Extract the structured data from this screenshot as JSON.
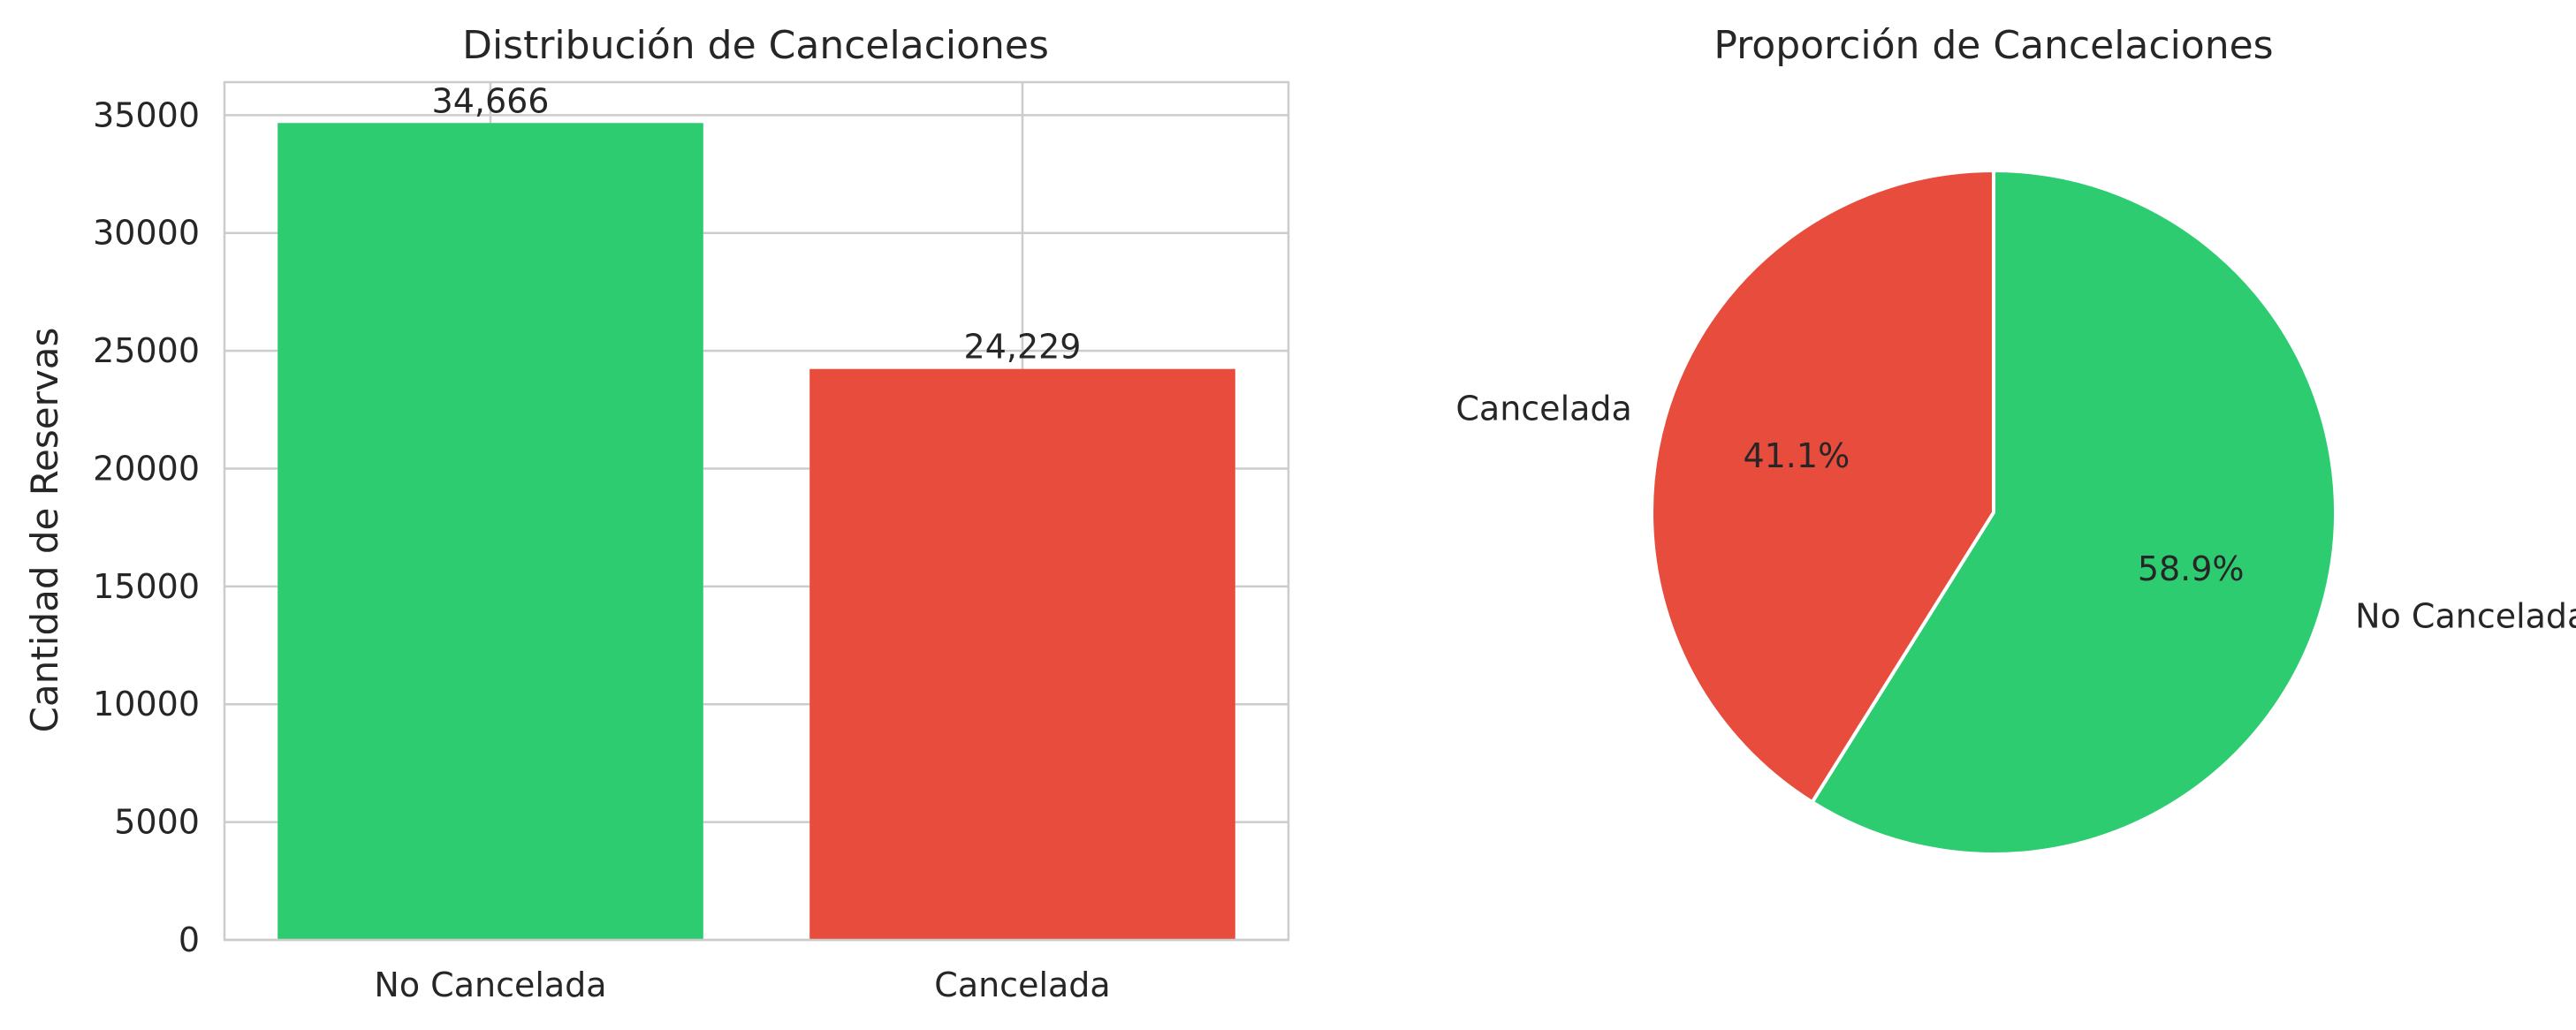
{
  "chart_data": [
    {
      "type": "bar",
      "title": "Distribución de Cancelaciones",
      "xlabel": "",
      "ylabel": "Cantidad de Reservas",
      "categories": [
        "No Cancelada",
        "Cancelada"
      ],
      "values": [
        34666,
        24229
      ],
      "value_labels": [
        "34,666",
        "24,229"
      ],
      "colors": [
        "#2ecc71",
        "#e74c3c"
      ],
      "ylim": [
        0,
        36400
      ],
      "yticks": [
        0,
        5000,
        10000,
        15000,
        20000,
        25000,
        30000,
        35000
      ],
      "ytick_labels": [
        "0",
        "5000",
        "10000",
        "15000",
        "20000",
        "25000",
        "30000",
        "35000"
      ],
      "grid": true
    },
    {
      "type": "pie",
      "title": "Proporción de Cancelaciones",
      "labels": [
        "No Cancelada",
        "Cancelada"
      ],
      "values": [
        58.9,
        41.1
      ],
      "pct_labels": [
        "58.9%",
        "41.1%"
      ],
      "colors": [
        "#2ecc71",
        "#e74c3c"
      ],
      "start_angle": 90,
      "direction": "clockwise"
    }
  ]
}
